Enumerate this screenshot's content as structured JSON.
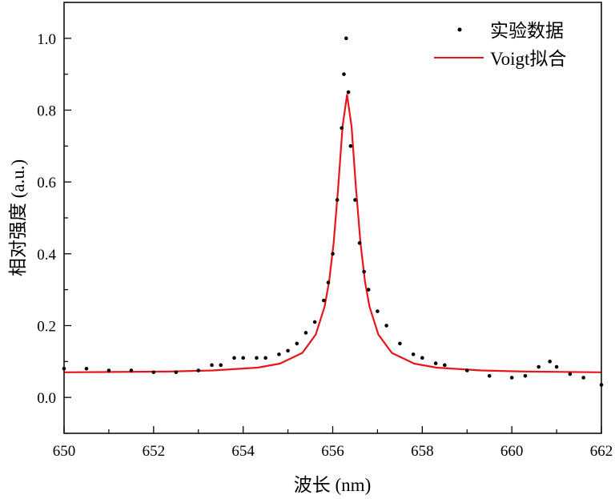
{
  "chart_data": {
    "type": "scatter",
    "xlabel": "波长 (nm)",
    "ylabel": "相对强度 (a.u.)",
    "xlim": [
      650,
      662
    ],
    "ylim": [
      -0.1,
      1.1
    ],
    "xticks": [
      "650",
      "652",
      "654",
      "656",
      "658",
      "660",
      "662"
    ],
    "yticks": [
      "0.0",
      "0.2",
      "0.4",
      "0.6",
      "0.8",
      "1.0"
    ],
    "grid": false,
    "legend_position": "top-right",
    "colors": {
      "data": "#000000",
      "fit": "#e8151b"
    },
    "series": [
      {
        "name": "实验数据",
        "kind": "scatter",
        "x": [
          650,
          650.5,
          651,
          651.5,
          652,
          652.5,
          653,
          653.3,
          653.5,
          653.8,
          654,
          654.3,
          654.5,
          654.8,
          655,
          655.2,
          655.4,
          655.6,
          655.8,
          655.9,
          656.0,
          656.1,
          656.2,
          656.25,
          656.3,
          656.35,
          656.4,
          656.5,
          656.6,
          656.7,
          656.8,
          657,
          657.2,
          657.5,
          657.8,
          658,
          658.3,
          658.5,
          659,
          659.5,
          660,
          660.3,
          660.6,
          660.85,
          661,
          661.3,
          661.6,
          662
        ],
        "y": [
          0.08,
          0.08,
          0.075,
          0.075,
          0.07,
          0.07,
          0.075,
          0.09,
          0.09,
          0.11,
          0.11,
          0.11,
          0.11,
          0.12,
          0.13,
          0.15,
          0.18,
          0.21,
          0.27,
          0.32,
          0.4,
          0.55,
          0.75,
          0.9,
          1.0,
          0.85,
          0.7,
          0.55,
          0.43,
          0.35,
          0.3,
          0.24,
          0.2,
          0.15,
          0.12,
          0.11,
          0.095,
          0.09,
          0.075,
          0.06,
          0.055,
          0.06,
          0.085,
          0.1,
          0.085,
          0.065,
          0.055,
          0.035
        ]
      },
      {
        "name": "Voigt拟合",
        "kind": "line",
        "x": [
          650,
          652.32,
          653.32,
          654.32,
          654.82,
          655.32,
          655.62,
          655.82,
          655.92,
          656.02,
          656.12,
          656.22,
          656.32,
          656.42,
          656.52,
          656.62,
          656.72,
          656.82,
          657.02,
          657.32,
          657.82,
          658.32,
          659.32,
          660.32,
          662
        ],
        "y": [
          0.07,
          0.072,
          0.075,
          0.083,
          0.094,
          0.124,
          0.175,
          0.253,
          0.323,
          0.429,
          0.581,
          0.755,
          0.843,
          0.755,
          0.581,
          0.429,
          0.323,
          0.253,
          0.175,
          0.124,
          0.094,
          0.083,
          0.075,
          0.072,
          0.07
        ]
      }
    ]
  }
}
